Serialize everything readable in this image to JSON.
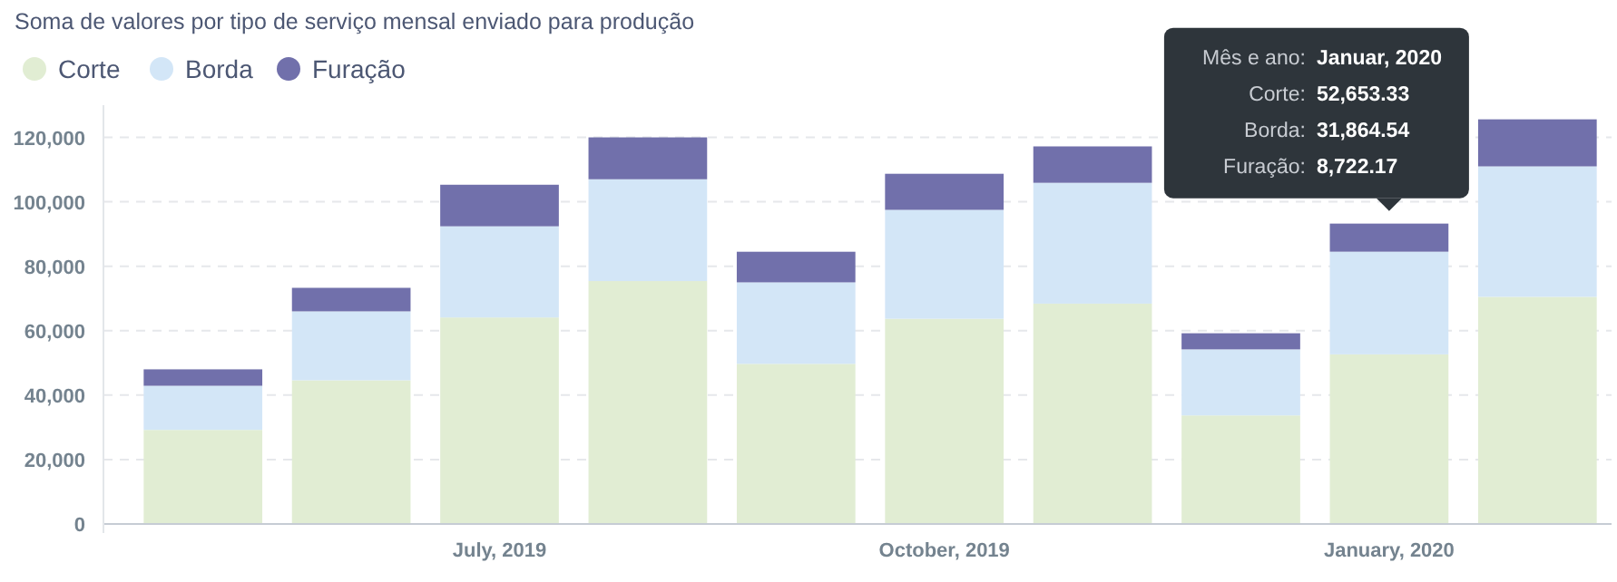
{
  "chart_data": {
    "type": "bar",
    "stacked": true,
    "title": "Soma de valores por tipo de serviço mensal enviado para produção",
    "categories": [
      null,
      null,
      "July, 2019",
      null,
      null,
      "October, 2019",
      null,
      null,
      "January, 2020",
      null
    ],
    "series": [
      {
        "name": "Corte",
        "color": "#e1edd3",
        "values": [
          29200,
          44600,
          64100,
          75400,
          49700,
          63700,
          68400,
          33700,
          52653.33,
          70500
        ]
      },
      {
        "name": "Borda",
        "color": "#d3e6f7",
        "values": [
          13700,
          21400,
          28300,
          31600,
          25300,
          33800,
          37500,
          20500,
          31864.54,
          40500
        ]
      },
      {
        "name": "Furação",
        "color": "#7170ab",
        "values": [
          5100,
          7300,
          12900,
          13000,
          9500,
          11200,
          11300,
          5000,
          8722.17,
          14600
        ]
      }
    ],
    "ylim": [
      0,
      130000
    ],
    "yticks": [
      {
        "value": 0,
        "label": "0"
      },
      {
        "value": 20000,
        "label": "20,000"
      },
      {
        "value": 40000,
        "label": "40,000"
      },
      {
        "value": 60000,
        "label": "60,000"
      },
      {
        "value": 80000,
        "label": "80,000"
      },
      {
        "value": 100000,
        "label": "100,000"
      },
      {
        "value": 120000,
        "label": "120,000"
      }
    ],
    "grid": "y",
    "legend": "top left",
    "annotations": [
      {
        "text": "Mês e ano: Januar, 2020\nCorte: 52,653.33\nBorda: 31,864.54\nFuração: 8,722.17",
        "x": "January, 2020",
        "y": 93240.04
      }
    ]
  }
}
